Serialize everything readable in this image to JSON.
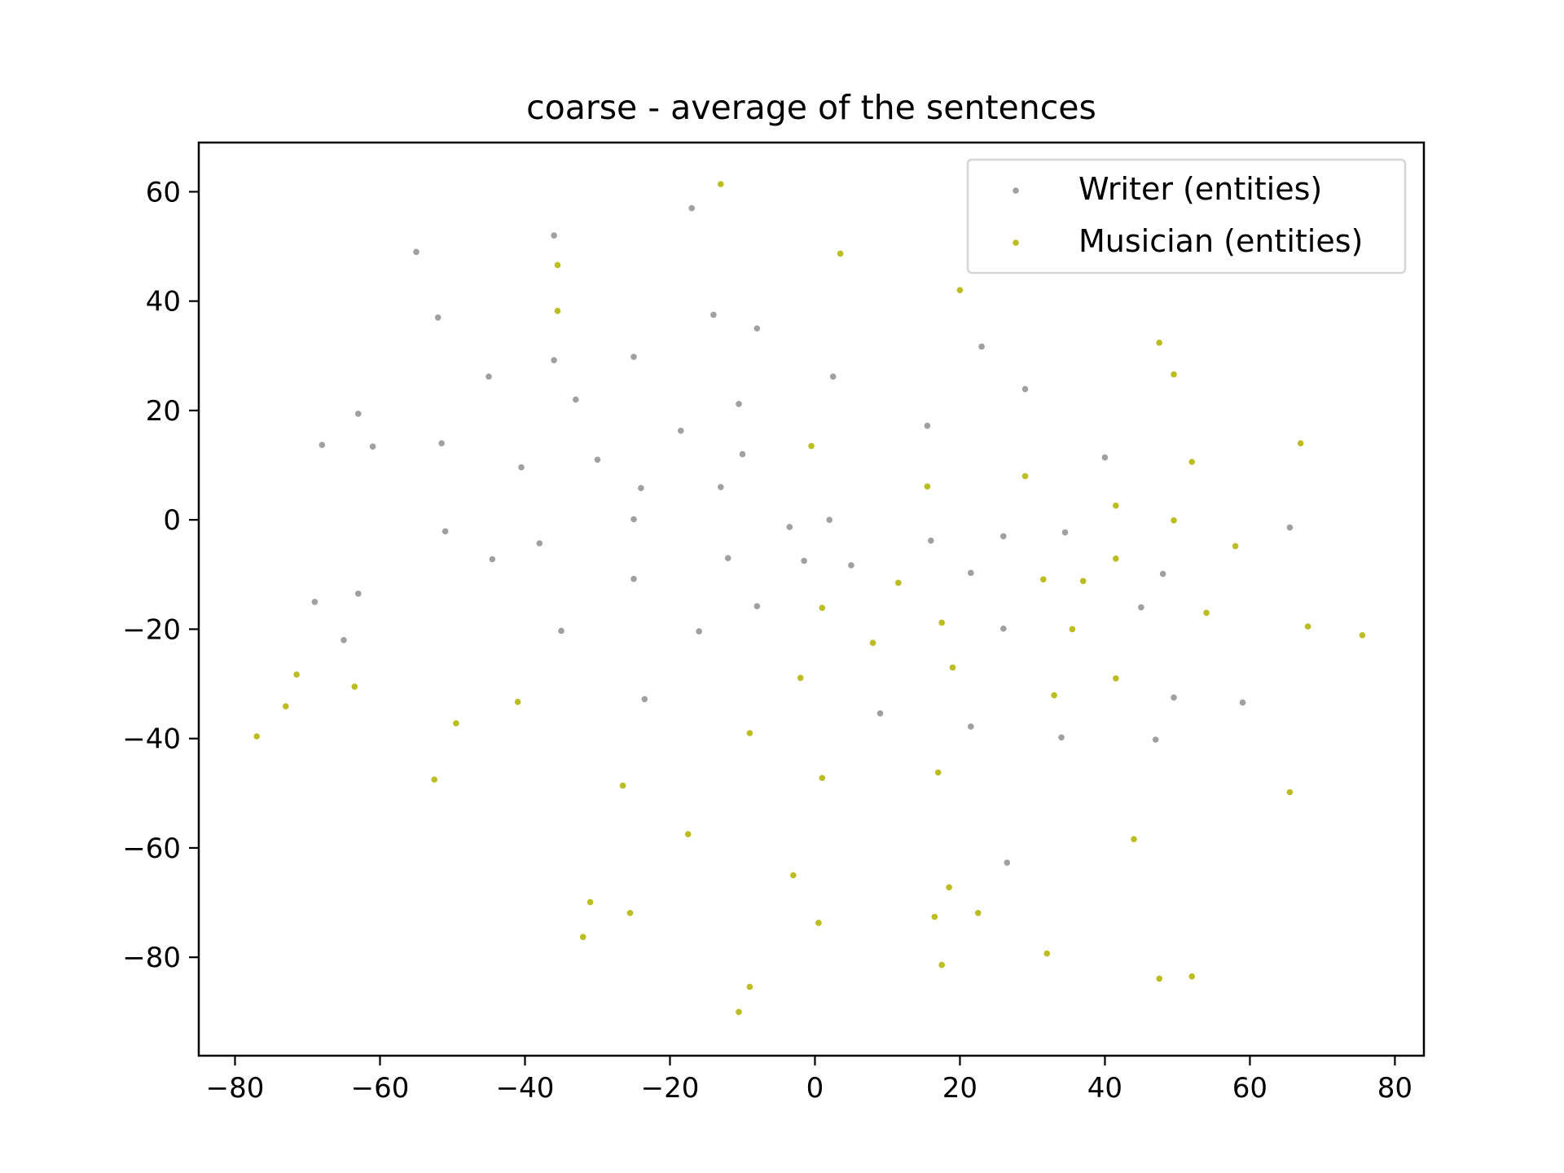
{
  "chart_data": {
    "type": "scatter",
    "title": "coarse - average of the sentences",
    "xlabel": "",
    "ylabel": "",
    "xlim": [
      -85,
      84
    ],
    "ylim": [
      -98,
      69
    ],
    "xticks": [
      -80,
      -60,
      -40,
      -20,
      0,
      20,
      40,
      60,
      80
    ],
    "yticks": [
      -80,
      -60,
      -40,
      -20,
      0,
      20,
      40,
      60
    ],
    "xtick_labels": [
      "−80",
      "−60",
      "−40",
      "−20",
      "0",
      "20",
      "40",
      "60",
      "80"
    ],
    "ytick_labels": [
      "−80",
      "−60",
      "−40",
      "−20",
      "0",
      "20",
      "40",
      "60"
    ],
    "grid": false,
    "legend": {
      "position": "top-right"
    },
    "series": [
      {
        "name": "Writer (entities)",
        "color": "#a0a0a0",
        "points": [
          [
            -17,
            57
          ],
          [
            -36,
            52
          ],
          [
            -55,
            49
          ],
          [
            -52,
            37
          ],
          [
            -14,
            37.5
          ],
          [
            -8,
            35
          ],
          [
            -36,
            29.2
          ],
          [
            -25,
            29.8
          ],
          [
            -45,
            26.2
          ],
          [
            -33,
            22
          ],
          [
            -10.5,
            21.2
          ],
          [
            2.5,
            26.2
          ],
          [
            23,
            31.7
          ],
          [
            29,
            23.9
          ],
          [
            15.5,
            17.2
          ],
          [
            -63,
            19.4
          ],
          [
            -68,
            13.7
          ],
          [
            -61,
            13.4
          ],
          [
            -51.5,
            14
          ],
          [
            -18.5,
            16.3
          ],
          [
            -10,
            12
          ],
          [
            -30,
            11
          ],
          [
            -40.5,
            9.6
          ],
          [
            -13,
            6
          ],
          [
            -24,
            5.8
          ],
          [
            40,
            11.4
          ],
          [
            -51,
            -2.1
          ],
          [
            -25,
            0.1
          ],
          [
            -38,
            -4.3
          ],
          [
            -44.5,
            -7.2
          ],
          [
            -12,
            -7
          ],
          [
            -3.5,
            -1.3
          ],
          [
            2,
            0
          ],
          [
            -1.5,
            -7.5
          ],
          [
            5,
            -8.3
          ],
          [
            16,
            -3.8
          ],
          [
            21.5,
            -9.7
          ],
          [
            26,
            -3
          ],
          [
            34.5,
            -2.3
          ],
          [
            48,
            -9.9
          ],
          [
            65.5,
            -1.4
          ],
          [
            -69,
            -15
          ],
          [
            -63,
            -13.5
          ],
          [
            -65,
            -22
          ],
          [
            -35,
            -20.3
          ],
          [
            -25,
            -10.8
          ],
          [
            -16,
            -20.4
          ],
          [
            -8,
            -15.8
          ],
          [
            45,
            -16
          ],
          [
            26,
            -19.9
          ],
          [
            49.5,
            -32.5
          ],
          [
            -23.5,
            -32.8
          ],
          [
            9,
            -35.4
          ],
          [
            21.5,
            -37.8
          ],
          [
            34,
            -39.8
          ],
          [
            47,
            -40.2
          ],
          [
            59,
            -33.4
          ],
          [
            26.5,
            -62.7
          ]
        ]
      },
      {
        "name": "Musician (entities)",
        "color": "#bcbd22",
        "points": [
          [
            -13,
            61.4
          ],
          [
            3.5,
            48.7
          ],
          [
            -35.5,
            46.6
          ],
          [
            -35.5,
            38.2
          ],
          [
            20,
            42
          ],
          [
            47.5,
            32.4
          ],
          [
            49.5,
            26.6
          ],
          [
            -0.5,
            13.5
          ],
          [
            67,
            14
          ],
          [
            52,
            10.6
          ],
          [
            29,
            8
          ],
          [
            15.5,
            6.1
          ],
          [
            41.5,
            2.6
          ],
          [
            49.5,
            -0.1
          ],
          [
            58,
            -4.8
          ],
          [
            41.5,
            -7.1
          ],
          [
            11.5,
            -11.5
          ],
          [
            31.5,
            -10.9
          ],
          [
            37,
            -11.2
          ],
          [
            1,
            -16.1
          ],
          [
            17.5,
            -18.8
          ],
          [
            54,
            -17
          ],
          [
            68,
            -19.5
          ],
          [
            75.5,
            -21.1
          ],
          [
            35.5,
            -20
          ],
          [
            8,
            -22.5
          ],
          [
            -71.5,
            -28.3
          ],
          [
            -63.5,
            -30.5
          ],
          [
            -73,
            -34.1
          ],
          [
            -77,
            -39.6
          ],
          [
            -41,
            -33.3
          ],
          [
            -49.5,
            -37.2
          ],
          [
            -2,
            -28.9
          ],
          [
            19,
            -27
          ],
          [
            41.5,
            -29
          ],
          [
            33,
            -32.1
          ],
          [
            -9,
            -39
          ],
          [
            -52.5,
            -47.5
          ],
          [
            -26.5,
            -48.6
          ],
          [
            1,
            -47.2
          ],
          [
            17,
            -46.2
          ],
          [
            65.5,
            -49.8
          ],
          [
            -17.5,
            -57.5
          ],
          [
            44,
            -58.4
          ],
          [
            -3,
            -65
          ],
          [
            -31,
            -69.9
          ],
          [
            -25.5,
            -71.9
          ],
          [
            18.5,
            -67.2
          ],
          [
            16.5,
            -72.6
          ],
          [
            22.5,
            -71.9
          ],
          [
            0.5,
            -73.7
          ],
          [
            -32,
            -76.3
          ],
          [
            32,
            -79.3
          ],
          [
            17.5,
            -81.4
          ],
          [
            47.5,
            -83.9
          ],
          [
            52,
            -83.5
          ],
          [
            -9,
            -85.4
          ],
          [
            -10.5,
            -90
          ]
        ]
      }
    ]
  }
}
